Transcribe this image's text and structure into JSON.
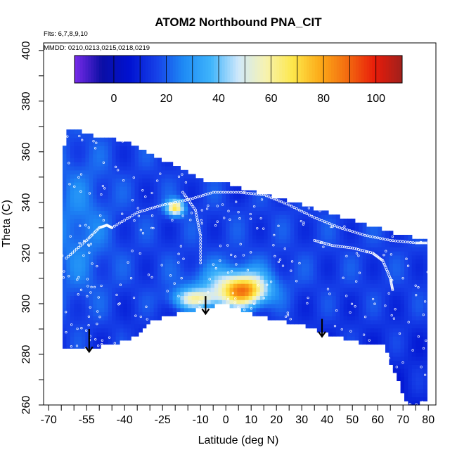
{
  "chart_data": {
    "type": "heatmap",
    "title": "ATOM2 Northbound PNA_CIT",
    "notes": {
      "flights": "Flts: 6,7,8,9,10",
      "dates": "MMDD: 0210,0213,0215,0218,0219"
    },
    "xlabel": "Latitude (deg N)",
    "ylabel": "Theta (C)",
    "xlim": [
      -72,
      83
    ],
    "ylim": [
      260,
      403
    ],
    "x_tick_labels": [
      "-70",
      "-55",
      "-40",
      "-25",
      "-10",
      "0",
      "10",
      "20",
      "30",
      "40",
      "50",
      "60",
      "70",
      "80"
    ],
    "x_tick_values": [
      -70,
      -55,
      -40,
      -25,
      -10,
      0,
      10,
      20,
      30,
      40,
      50,
      60,
      70,
      80
    ],
    "y_ticks": [
      260,
      280,
      300,
      320,
      340,
      360,
      380,
      400
    ],
    "colorbar": {
      "ticks": [
        0,
        20,
        40,
        60,
        80,
        100
      ],
      "range": [
        -15,
        110
      ],
      "colors": [
        "#7a2bea",
        "#0b0fa5",
        "#0011d0",
        "#1640e8",
        "#1e8bf5",
        "#3fb4fb",
        "#cfe8fb",
        "#f7f3b0",
        "#fde74a",
        "#fcaa18",
        "#f26a10",
        "#e81c0a",
        "#a0201c"
      ]
    },
    "data_boundary": {
      "latitude": [
        -65.0,
        -62.0,
        -60.0,
        -55.0,
        -50.0,
        -45.0,
        -40.0,
        -35.0,
        -30.0,
        -20.0,
        -10.0,
        0.0,
        10.0,
        20.0,
        30.0,
        40.0,
        50.0,
        60.0,
        70.0,
        80.0,
        80.0,
        75.0,
        72.0,
        70.0,
        66.0,
        62.0,
        55.0,
        50.0,
        40.0,
        30.0,
        20.0,
        10.0,
        0.0,
        -10.0,
        -20.0,
        -30.0,
        -35.0,
        -45.0,
        -50.0,
        -55.0,
        -60.0,
        -65.0
      ],
      "theta": [
        358.0,
        369.5,
        369.0,
        367.0,
        366.0,
        365.0,
        364.0,
        362.0,
        359.0,
        354.5,
        349.0,
        347.5,
        344.5,
        342.0,
        339.0,
        336.0,
        333.0,
        330.0,
        327.0,
        325.0,
        262.0,
        260.0,
        260.0,
        264.0,
        275.0,
        284.0,
        284.0,
        285.5,
        288.0,
        292.0,
        293.5,
        296.0,
        300.0,
        298.0,
        296.0,
        293.0,
        287.0,
        284.0,
        283.0,
        282.0,
        282.0,
        282.0
      ]
    },
    "field": {
      "background_value": 16,
      "features": [
        {
          "lat": 7,
          "theta": 305,
          "lat_radius": 9,
          "theta_radius": 6,
          "peak": 72
        },
        {
          "lat": -12,
          "theta": 302,
          "lat_radius": 9,
          "theta_radius": 4,
          "peak": 52
        },
        {
          "lat": 2,
          "theta": 308,
          "lat_radius": 16,
          "theta_radius": 8,
          "peak": 36
        },
        {
          "lat": -20,
          "theta": 338,
          "lat_radius": 3.5,
          "theta_radius": 3,
          "peak": 68
        },
        {
          "lat": -58,
          "theta": 330,
          "lat_radius": 12,
          "theta_radius": 30,
          "peak": 26
        },
        {
          "lat": 10,
          "theta": 343,
          "lat_radius": 8,
          "theta_radius": 3,
          "peak": 14
        }
      ]
    },
    "sample_tracks": [
      {
        "latitude": [
          -63,
          -55,
          -50,
          -47,
          -45
        ],
        "theta": [
          318,
          325,
          330,
          331,
          330
        ]
      },
      {
        "latitude": [
          -45,
          -35,
          -25,
          -15,
          -5,
          5,
          15,
          25,
          35,
          45,
          55,
          65,
          75,
          80
        ],
        "theta": [
          330,
          336,
          339,
          341,
          344,
          344,
          343,
          339,
          334,
          330,
          327,
          325,
          324,
          324
        ]
      },
      {
        "latitude": [
          -17,
          -12,
          -10,
          -10
        ],
        "theta": [
          344,
          337,
          327,
          315
        ]
      },
      {
        "latitude": [
          35,
          42,
          50,
          58,
          62,
          65,
          66
        ],
        "theta": [
          325,
          323,
          322,
          320,
          317,
          310,
          305
        ]
      }
    ],
    "arrows": [
      {
        "lat": -54,
        "theta_top": 290,
        "theta_bottom": 281
      },
      {
        "lat": -8,
        "theta_top": 303,
        "theta_bottom": 296
      },
      {
        "lat": 38,
        "theta_top": 294,
        "theta_bottom": 287
      }
    ]
  }
}
